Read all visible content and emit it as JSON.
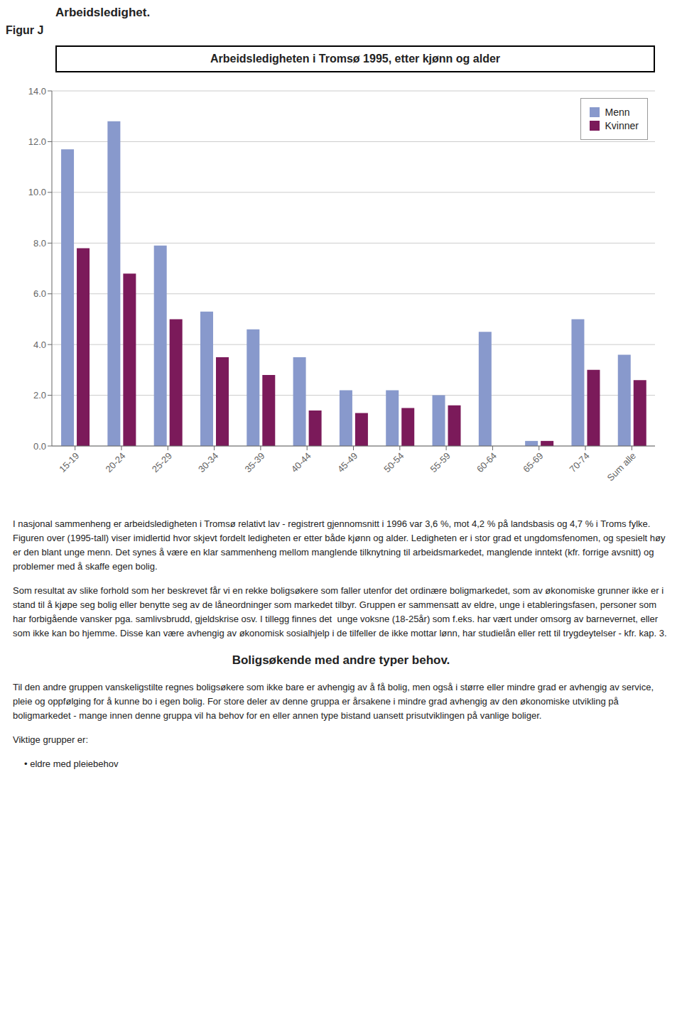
{
  "chart_data": {
    "type": "bar",
    "title": "Arbeidsledigheten i Tromsø 1995, etter kjønn og alder",
    "categories": [
      "15-19",
      "20-24",
      "25-29",
      "30-34",
      "35-39",
      "40-44",
      "45-49",
      "50-54",
      "55-59",
      "60-64",
      "65-69",
      "70-74",
      "Sum alle"
    ],
    "series": [
      {
        "name": "Menn",
        "color": "#8899CC",
        "values": [
          11.7,
          12.8,
          7.9,
          5.3,
          4.6,
          3.5,
          2.2,
          2.2,
          2.0,
          4.5,
          0.2,
          5.0,
          3.6
        ]
      },
      {
        "name": "Kvinner",
        "color": "#7B1A5A",
        "values": [
          7.8,
          6.8,
          5.0,
          3.5,
          2.8,
          1.4,
          1.3,
          1.5,
          1.6,
          0.0,
          0.2,
          3.0,
          2.6
        ]
      }
    ],
    "ylim": [
      0,
      14
    ],
    "yticks": [
      {
        "value": 0,
        "label": "0.0"
      },
      {
        "value": 2,
        "label": "2.0"
      },
      {
        "value": 4,
        "label": "4.0"
      },
      {
        "value": 6,
        "label": "6.0"
      },
      {
        "value": 8,
        "label": "8.0"
      },
      {
        "value": 10,
        "label": "10.0"
      },
      {
        "value": 12,
        "label": "12.0"
      },
      {
        "value": 14,
        "label": "14.0"
      }
    ],
    "grid": true,
    "legend": "upper right",
    "annotations": [
      "Arbeidsledighet.",
      "Figur J",
      "I nasjonal sammenheng er arbeidsledigheten i Tromsø relativt lav - registrert gjennomsnitt i 1996 var 3,6 %, mot 4,2 % på landsbasis og 4,7 % i Troms fylke. Figuren over (1995-tall) viser imidlertid hvor skjevt fordelt ledigheten er etter både kjønn og alder. Ledigheten er i stor grad et ungdomsfenomen, og spesielt høy er den blant unge menn. Det synes å være en klar sammenheng mellom manglende tilknytning til arbeidsmarkedet, manglende inntekt (kfr. forrige avsnitt) og problemer med å skaffe egen bolig.",
      "Som resultat av slike forhold som her beskrevet får vi en rekke boligsøkere som faller utenfor det ordinære boligmarkedet, som av økonomiske grunner ikke er i stand til å kjøpe seg bolig eller benytte seg av de låneordninger som markedet tilbyr. Gruppen er sammensatt av eldre, unge i etableringsfasen, personer som har forbigående vansker pga. samlivsbrudd, gjeldskrise osv. I tillegg finnes det  unge voksne (18-25år) som f.eks. har vært under omsorg av barnevernet, eller som ikke kan bo hjemme. Disse kan være avhengig av økonomisk sosialhjelp i de tilfeller de ikke mottar lønn, har studielån eller rett til trygdeytelser - kfr. kap. 3.",
      "Boligsøkende med andre typer behov.",
      "Til den andre gruppen vanskeligstilte regnes boligsøkere som ikke bare er avhengig av å få bolig, men også i større eller mindre grad er avhengig av service, pleie og oppfølging for å kunne bo i egen bolig. For store deler av denne gruppa er årsakene i mindre grad avhengig av den økonomiske utvikling på boligmarkedet - mange innen denne gruppa vil ha behov for en eller annen type bistand uansett prisutviklingen på vanlige boliger.",
      "Viktige grupper er:",
      "• eldre med pleiebehov"
    ]
  }
}
